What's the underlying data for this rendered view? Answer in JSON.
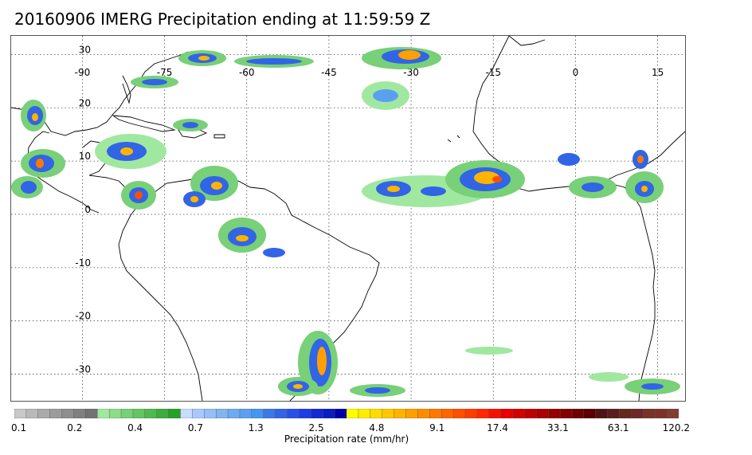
{
  "title": "20160906 IMERG Precipitation ending at 11:59:59 Z",
  "map": {
    "lon_ticks": [
      "-90",
      "-75",
      "-60",
      "-45",
      "-30",
      "-15",
      "0",
      "15"
    ],
    "lat_ticks": [
      "30",
      "20",
      "10",
      "0",
      "-10",
      "-20",
      "-30"
    ],
    "lon_values": [
      -90,
      -75,
      -60,
      -45,
      -30,
      -15,
      0,
      15
    ],
    "lat_values": [
      30,
      20,
      10,
      0,
      -10,
      -20,
      -30
    ],
    "lon_range": [
      -103,
      20
    ],
    "lat_range": [
      -35,
      33.5
    ],
    "grid": "dotted"
  },
  "colorbar": {
    "title": "Precipitation rate (mm/hr)",
    "labels": [
      "0.1",
      "0.2",
      "0.4",
      "0.7",
      "1.3",
      "2.5",
      "4.8",
      "9.1",
      "17.4",
      "33.1",
      "63.1",
      "120.2"
    ],
    "colors": [
      "#c8c8c8",
      "#b9b9b9",
      "#aaaaaa",
      "#9c9c9c",
      "#8e8e8e",
      "#808080",
      "#727272",
      "#a0e8a0",
      "#8cdc8c",
      "#78d078",
      "#64c464",
      "#50b850",
      "#3cac3c",
      "#28a028",
      "#c8dcff",
      "#aac8ff",
      "#96bef8",
      "#82b4f0",
      "#6eaaf0",
      "#5aa0f0",
      "#4696f0",
      "#3c78e6",
      "#3264e6",
      "#2850e6",
      "#1e3ce6",
      "#1428d2",
      "#0a1ebe",
      "#0000aa",
      "#ffff00",
      "#ffee00",
      "#ffdc00",
      "#ffc800",
      "#ffb400",
      "#ffa000",
      "#ff8c00",
      "#ff7800",
      "#ff6400",
      "#ff5000",
      "#ff3c00",
      "#ff2800",
      "#f01400",
      "#e60000",
      "#d20000",
      "#be0000",
      "#aa0000",
      "#960000",
      "#820000",
      "#6e0000",
      "#5a0000",
      "#501414",
      "#5a1e1e",
      "#64281e",
      "#6e2828",
      "#783228",
      "#7d3228",
      "#823c32"
    ]
  }
}
